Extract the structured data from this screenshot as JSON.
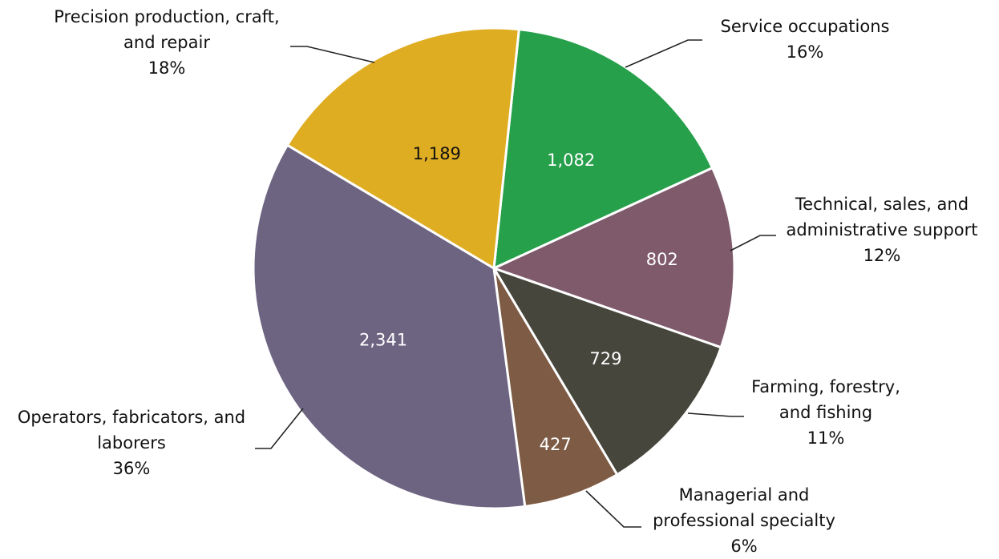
{
  "chart_data": {
    "type": "pie",
    "slices": [
      {
        "name": "Service occupations",
        "label_lines": [
          "Service occupations"
        ],
        "percent_label": "16%",
        "value": 1082,
        "value_label": "1,082",
        "color": "#27a04b",
        "value_text_color": "#ffffff"
      },
      {
        "name": "Technical, sales, and administrative support",
        "label_lines": [
          "Technical, sales, and",
          "administrative support"
        ],
        "percent_label": "12%",
        "value": 802,
        "value_label": "802",
        "color": "#7e5a6b",
        "value_text_color": "#ffffff"
      },
      {
        "name": "Farming, forestry, and fishing",
        "label_lines": [
          "Farming, forestry,",
          "and fishing"
        ],
        "percent_label": "11%",
        "value": 729,
        "value_label": "729",
        "color": "#46463d",
        "value_text_color": "#ffffff"
      },
      {
        "name": "Managerial and professional specialty",
        "label_lines": [
          "Managerial and",
          "professional specialty"
        ],
        "percent_label": "6%",
        "value": 427,
        "value_label": "427",
        "color": "#7d5b44",
        "value_text_color": "#ffffff"
      },
      {
        "name": "Operators, fabricators, and laborers",
        "label_lines": [
          "Operators, fabricators, and",
          "laborers"
        ],
        "percent_label": "36%",
        "value": 2341,
        "value_label": "2,341",
        "color": "#6d6482",
        "value_text_color": "#ffffff"
      },
      {
        "name": "Precision production, craft, and repair",
        "label_lines": [
          "Precision production, craft,",
          "and repair"
        ],
        "percent_label": "18%",
        "value": 1189,
        "value_label": "1,189",
        "color": "#dfad22",
        "value_text_color": "#111111"
      }
    ]
  }
}
